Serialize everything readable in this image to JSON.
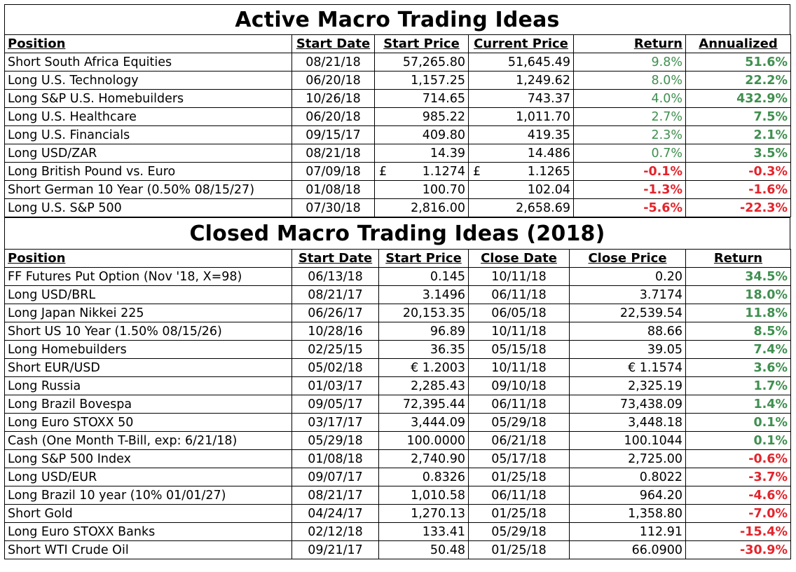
{
  "active": {
    "title": "Active Macro Trading Ideas",
    "headers": [
      "Position",
      "Start Date",
      "Start Price",
      "Current Price",
      "Return",
      "Annualized"
    ],
    "rows": [
      {
        "position": "Short South Africa Equities",
        "start_date": "08/21/18",
        "start_price": "57,265.80",
        "current_price": "51,645.49",
        "return": "9.8%",
        "annualized": "51.6%",
        "sign": "pos"
      },
      {
        "position": "Long U.S. Technology",
        "start_date": "06/20/18",
        "start_price": "1,157.25",
        "current_price": "1,249.62",
        "return": "8.0%",
        "annualized": "22.2%",
        "sign": "pos"
      },
      {
        "position": "Long S&P U.S. Homebuilders",
        "start_date": "10/26/18",
        "start_price": "714.65",
        "current_price": "743.37",
        "return": "4.0%",
        "annualized": "432.9%",
        "sign": "pos"
      },
      {
        "position": "Long U.S. Healthcare",
        "start_date": "06/20/18",
        "start_price": "985.22",
        "current_price": "1,011.70",
        "return": "2.7%",
        "annualized": "7.5%",
        "sign": "pos"
      },
      {
        "position": "Long U.S. Financials",
        "start_date": "09/15/17",
        "start_price": "409.80",
        "current_price": "419.35",
        "return": "2.3%",
        "annualized": "2.1%",
        "sign": "pos"
      },
      {
        "position": "Long USD/ZAR",
        "start_date": "08/21/18",
        "start_price": "14.39",
        "current_price": "14.486",
        "return": "0.7%",
        "annualized": "3.5%",
        "sign": "pos"
      },
      {
        "position": "Long British Pound vs. Euro",
        "start_date": "07/09/18",
        "start_symbol": "£",
        "start_price": "1.1274",
        "current_symbol": "£",
        "current_price": "1.1265",
        "return": "-0.1%",
        "annualized": "-0.3%",
        "sign": "neg"
      },
      {
        "position": "Short German 10 Year (0.50% 08/15/27)",
        "start_date": "01/08/18",
        "start_price": "100.70",
        "current_price": "102.04",
        "return": "-1.3%",
        "annualized": "-1.6%",
        "sign": "neg"
      },
      {
        "position": "Long U.S. S&P 500",
        "start_date": "07/30/18",
        "start_price": "2,816.00",
        "current_price": "2,658.69",
        "return": "-5.6%",
        "annualized": "-22.3%",
        "sign": "neg"
      }
    ]
  },
  "closed": {
    "title": "Closed Macro Trading Ideas (2018)",
    "headers": [
      "Position",
      "Start Date",
      "Start Price",
      "Close Date",
      "Close Price",
      "Return"
    ],
    "rows": [
      {
        "position": "FF Futures Put Option (Nov '18, X=98)",
        "start_date": "06/13/18",
        "start_price": "0.145",
        "close_date": "10/11/18",
        "close_price": "0.20",
        "return": "34.5%",
        "sign": "pos"
      },
      {
        "position": "Long USD/BRL",
        "start_date": "08/21/17",
        "start_price": "3.1496",
        "close_date": "06/11/18",
        "close_price": "3.7174",
        "return": "18.0%",
        "sign": "pos"
      },
      {
        "position": "Long Japan Nikkei 225",
        "start_date": "06/26/17",
        "start_price": "20,153.35",
        "close_date": "06/05/18",
        "close_price": "22,539.54",
        "return": "11.8%",
        "sign": "pos"
      },
      {
        "position": "Short US 10 Year (1.50% 08/15/26)",
        "start_date": "10/28/16",
        "start_price": "96.89",
        "close_date": "10/11/18",
        "close_price": "88.66",
        "return": "8.5%",
        "sign": "pos"
      },
      {
        "position": "Long Homebuilders",
        "start_date": "02/25/15",
        "start_price": "36.35",
        "close_date": "05/15/18",
        "close_price": "39.05",
        "return": "7.4%",
        "sign": "pos"
      },
      {
        "position": "Short EUR/USD",
        "start_date": "05/02/18",
        "start_price": "€ 1.2003",
        "close_date": "10/11/18",
        "close_price": "€ 1.1574",
        "return": "3.6%",
        "sign": "pos"
      },
      {
        "position": "Long Russia",
        "start_date": "01/03/17",
        "start_price": "2,285.43",
        "close_date": "09/10/18",
        "close_price": "2,325.19",
        "return": "1.7%",
        "sign": "pos"
      },
      {
        "position": "Long Brazil Bovespa",
        "start_date": "09/05/17",
        "start_price": "72,395.44",
        "close_date": "06/11/18",
        "close_price": "73,438.09",
        "return": "1.4%",
        "sign": "pos"
      },
      {
        "position": "Long Euro STOXX 50",
        "start_date": "03/17/17",
        "start_price": "3,444.09",
        "close_date": "05/29/18",
        "close_price": "3,448.18",
        "return": "0.1%",
        "sign": "pos"
      },
      {
        "position": "Cash (One Month T-Bill, exp: 6/21/18)",
        "start_date": "05/29/18",
        "start_price": "100.0000",
        "close_date": "06/21/18",
        "close_price": "100.1044",
        "return": "0.1%",
        "sign": "pos"
      },
      {
        "position": "Long S&P 500 Index",
        "start_date": "01/08/18",
        "start_price": "2,740.90",
        "close_date": "05/17/18",
        "close_price": "2,725.00",
        "return": "-0.6%",
        "sign": "neg"
      },
      {
        "position": "Long USD/EUR",
        "start_date": "09/07/17",
        "start_price": "0.8326",
        "close_date": "01/25/18",
        "close_price": "0.8022",
        "return": "-3.7%",
        "sign": "neg"
      },
      {
        "position": "Long Brazil 10 year (10% 01/01/27)",
        "start_date": "08/21/17",
        "start_price": "1,010.58",
        "close_date": "06/11/18",
        "close_price": "964.20",
        "return": "-4.6%",
        "sign": "neg"
      },
      {
        "position": "Short Gold",
        "start_date": "04/24/17",
        "start_price": "1,270.13",
        "close_date": "01/25/18",
        "close_price": "1,358.80",
        "return": "-7.0%",
        "sign": "neg"
      },
      {
        "position": "Long Euro STOXX Banks",
        "start_date": "02/12/18",
        "start_price": "133.41",
        "close_date": "05/29/18",
        "close_price": "112.91",
        "return": "-15.4%",
        "sign": "neg"
      },
      {
        "position": "Short WTI Crude Oil",
        "start_date": "09/21/17",
        "start_price": "50.48",
        "close_date": "01/25/18",
        "close_price": "66.0900",
        "return": "-30.9%",
        "sign": "neg"
      }
    ]
  },
  "colors": {
    "positive": "#3f8f4f",
    "negative": "#e3242b"
  }
}
